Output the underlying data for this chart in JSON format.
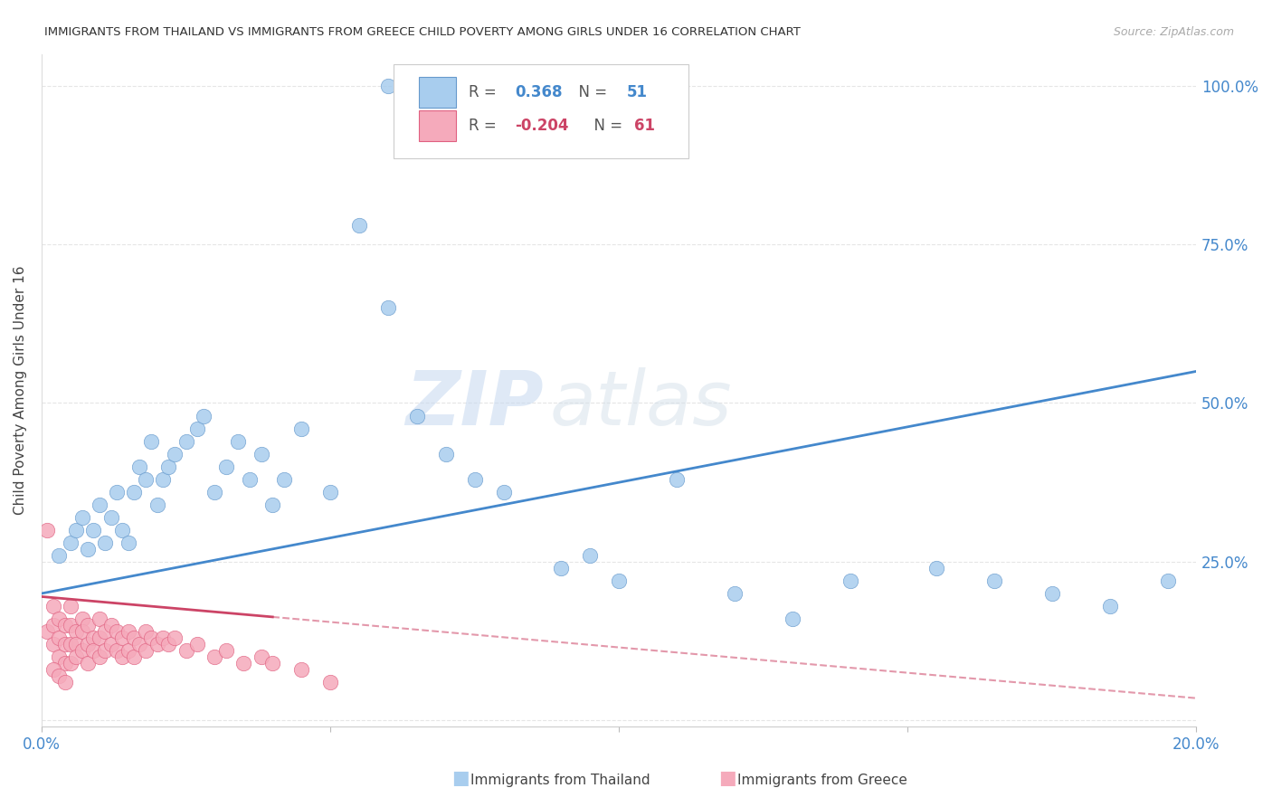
{
  "title": "IMMIGRANTS FROM THAILAND VS IMMIGRANTS FROM GREECE CHILD POVERTY AMONG GIRLS UNDER 16 CORRELATION CHART",
  "source": "Source: ZipAtlas.com",
  "ylabel": "Child Poverty Among Girls Under 16",
  "xlim": [
    0.0,
    0.2
  ],
  "ylim": [
    -0.01,
    1.05
  ],
  "yticks": [
    0.0,
    0.25,
    0.5,
    0.75,
    1.0
  ],
  "right_ytick_labels": [
    "",
    "25.0%",
    "50.0%",
    "75.0%",
    "100.0%"
  ],
  "xtick_positions": [
    0.0,
    0.05,
    0.1,
    0.15,
    0.2
  ],
  "xtick_labels": [
    "0.0%",
    "",
    "",
    "",
    "20.0%"
  ],
  "thailand_color": "#A8CDEE",
  "thailand_edge_color": "#6699CC",
  "greece_color": "#F5AABB",
  "greece_edge_color": "#E06080",
  "trend_blue": "#4488CC",
  "trend_pink": "#CC4466",
  "watermark_zip": "ZIP",
  "watermark_atlas": "atlas",
  "background_color": "#FFFFFF",
  "title_color": "#333333",
  "axis_color": "#4488CC",
  "label_color": "#444444",
  "grid_color": "#CCCCCC",
  "legend_thailand_text": "R =  0.368   N = 51",
  "legend_greece_text": "R = -0.204   N = 61",
  "legend_R_blue": "#4488CC",
  "legend_R_pink": "#CC4466",
  "bottom_legend_thailand": "Immigrants from Thailand",
  "bottom_legend_greece": "Immigrants from Greece",
  "thailand_x": [
    0.003,
    0.005,
    0.006,
    0.007,
    0.008,
    0.009,
    0.01,
    0.011,
    0.012,
    0.013,
    0.014,
    0.015,
    0.016,
    0.017,
    0.018,
    0.019,
    0.02,
    0.021,
    0.022,
    0.023,
    0.025,
    0.027,
    0.028,
    0.03,
    0.032,
    0.034,
    0.036,
    0.038,
    0.04,
    0.042,
    0.045,
    0.05,
    0.055,
    0.06,
    0.065,
    0.07,
    0.075,
    0.08,
    0.09,
    0.095,
    0.1,
    0.11,
    0.12,
    0.13,
    0.14,
    0.155,
    0.165,
    0.175,
    0.185,
    0.195,
    0.06
  ],
  "thailand_y": [
    0.26,
    0.28,
    0.3,
    0.32,
    0.27,
    0.3,
    0.34,
    0.28,
    0.32,
    0.36,
    0.3,
    0.28,
    0.36,
    0.4,
    0.38,
    0.44,
    0.34,
    0.38,
    0.4,
    0.42,
    0.44,
    0.46,
    0.48,
    0.36,
    0.4,
    0.44,
    0.38,
    0.42,
    0.34,
    0.38,
    0.46,
    0.36,
    0.78,
    0.65,
    0.48,
    0.42,
    0.38,
    0.36,
    0.24,
    0.26,
    0.22,
    0.38,
    0.2,
    0.16,
    0.22,
    0.24,
    0.22,
    0.2,
    0.18,
    0.22,
    1.0
  ],
  "greece_x": [
    0.001,
    0.001,
    0.002,
    0.002,
    0.002,
    0.003,
    0.003,
    0.003,
    0.004,
    0.004,
    0.004,
    0.005,
    0.005,
    0.005,
    0.005,
    0.006,
    0.006,
    0.006,
    0.007,
    0.007,
    0.007,
    0.008,
    0.008,
    0.008,
    0.009,
    0.009,
    0.01,
    0.01,
    0.01,
    0.011,
    0.011,
    0.012,
    0.012,
    0.013,
    0.013,
    0.014,
    0.014,
    0.015,
    0.015,
    0.016,
    0.016,
    0.017,
    0.018,
    0.018,
    0.019,
    0.02,
    0.021,
    0.022,
    0.023,
    0.025,
    0.027,
    0.03,
    0.032,
    0.035,
    0.038,
    0.04,
    0.045,
    0.05,
    0.002,
    0.003,
    0.004
  ],
  "greece_y": [
    0.3,
    0.14,
    0.15,
    0.18,
    0.12,
    0.16,
    0.13,
    0.1,
    0.15,
    0.12,
    0.09,
    0.18,
    0.15,
    0.12,
    0.09,
    0.14,
    0.12,
    0.1,
    0.16,
    0.14,
    0.11,
    0.15,
    0.12,
    0.09,
    0.13,
    0.11,
    0.16,
    0.13,
    0.1,
    0.14,
    0.11,
    0.15,
    0.12,
    0.14,
    0.11,
    0.13,
    0.1,
    0.14,
    0.11,
    0.13,
    0.1,
    0.12,
    0.14,
    0.11,
    0.13,
    0.12,
    0.13,
    0.12,
    0.13,
    0.11,
    0.12,
    0.1,
    0.11,
    0.09,
    0.1,
    0.09,
    0.08,
    0.06,
    0.08,
    0.07,
    0.06
  ]
}
